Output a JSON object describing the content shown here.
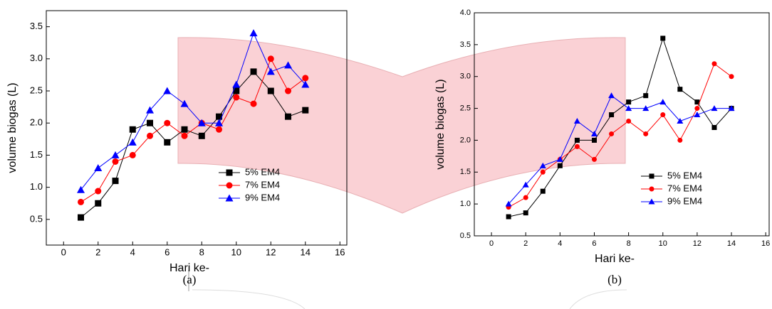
{
  "chart_data": [
    {
      "type": "line",
      "label": "(a)",
      "x_label": "Hari ke-",
      "y_label": "volume biogas (L)",
      "x": [
        1,
        2,
        3,
        4,
        5,
        6,
        7,
        8,
        9,
        10,
        11,
        12,
        13,
        14
      ],
      "xlim": [
        -1,
        16.4
      ],
      "xticks": [
        0,
        2,
        4,
        6,
        8,
        10,
        12,
        14,
        16
      ],
      "ylim": [
        0.1,
        3.75
      ],
      "yticks": [
        0.5,
        {
          "value": 1,
          "label": "1.0"
        },
        1.5,
        {
          "value": 2,
          "label": "2.0"
        },
        2.5,
        {
          "value": 3,
          "label": "3.0"
        },
        3.5
      ],
      "legend_loc": "lower right",
      "series": [
        {
          "name": "5% EM4",
          "color": "#000000",
          "marker": "square",
          "values": [
            0.53,
            0.75,
            1.1,
            1.9,
            2.0,
            1.7,
            1.9,
            1.8,
            2.1,
            2.5,
            2.8,
            2.5,
            2.1,
            2.2
          ]
        },
        {
          "name": "7% EM4",
          "color": "#ff0000",
          "marker": "circle",
          "values": [
            0.77,
            0.94,
            1.4,
            1.5,
            1.8,
            2.0,
            1.8,
            2.0,
            1.9,
            2.4,
            2.3,
            3.0,
            2.5,
            2.7
          ]
        },
        {
          "name": "9% EM4",
          "color": "#0000ff",
          "marker": "triangle",
          "values": [
            0.96,
            1.3,
            1.5,
            1.7,
            2.2,
            2.5,
            2.3,
            2.0,
            2.0,
            2.6,
            3.4,
            2.8,
            2.9,
            2.6
          ]
        }
      ]
    },
    {
      "type": "line",
      "label": "(b)",
      "x_label": "Hari ke-",
      "y_label": "volume biogas (L)",
      "x": [
        1,
        2,
        3,
        4,
        5,
        6,
        7,
        8,
        9,
        10,
        11,
        12,
        13,
        14
      ],
      "xlim": [
        -1,
        16.2
      ],
      "xticks": [
        0,
        2,
        4,
        6,
        8,
        10,
        12,
        14,
        16
      ],
      "ylim": [
        0.5,
        4.0
      ],
      "yticks": [
        0.5,
        {
          "value": 1,
          "label": "1.0"
        },
        1.5,
        {
          "value": 2,
          "label": "2.0"
        },
        2.5,
        {
          "value": 3,
          "label": "3.0"
        },
        3.5,
        {
          "value": 4,
          "label": "4.0"
        }
      ],
      "legend_loc": "lower right",
      "series": [
        {
          "name": "5% EM4",
          "color": "#000000",
          "marker": "square",
          "values": [
            0.8,
            0.86,
            1.2,
            1.6,
            2.0,
            2.0,
            2.4,
            2.6,
            2.7,
            3.6,
            2.8,
            2.6,
            2.2,
            2.5
          ]
        },
        {
          "name": "7% EM4",
          "color": "#ff0000",
          "marker": "circle",
          "values": [
            0.95,
            1.1,
            1.5,
            1.7,
            1.9,
            1.7,
            2.1,
            2.3,
            2.1,
            2.4,
            2.0,
            2.5,
            3.2,
            3.0
          ]
        },
        {
          "name": "9% EM4",
          "color": "#0000ff",
          "marker": "triangle",
          "values": [
            1.0,
            1.3,
            1.6,
            1.7,
            2.3,
            2.1,
            2.7,
            2.5,
            2.5,
            2.6,
            2.3,
            2.4,
            2.5,
            2.5
          ]
        }
      ]
    }
  ]
}
